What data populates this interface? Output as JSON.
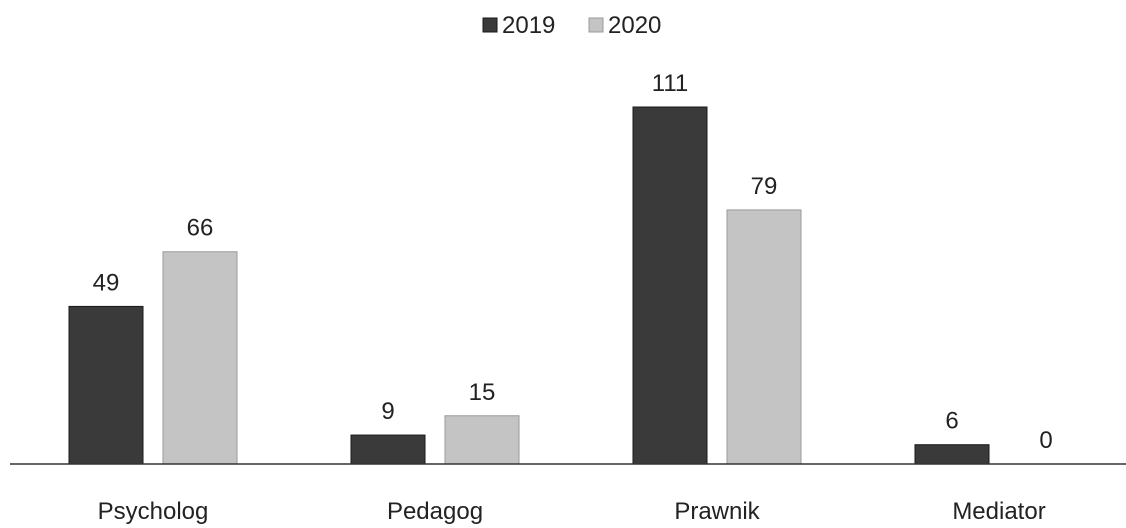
{
  "chart_data": {
    "type": "bar",
    "title": "",
    "xlabel": "",
    "ylabel": "",
    "categories": [
      "Psycholog",
      "Pedagog",
      "Prawnik",
      "Mediator"
    ],
    "series": [
      {
        "name": "2019",
        "values": [
          49,
          9,
          111,
          6
        ],
        "color": "#3a3a3a"
      },
      {
        "name": "2020",
        "values": [
          66,
          15,
          79,
          0
        ],
        "color": "#c4c4c4"
      }
    ],
    "ylim": [
      0,
      111
    ],
    "legend": "top-center",
    "grid": false,
    "data_labels": true
  }
}
